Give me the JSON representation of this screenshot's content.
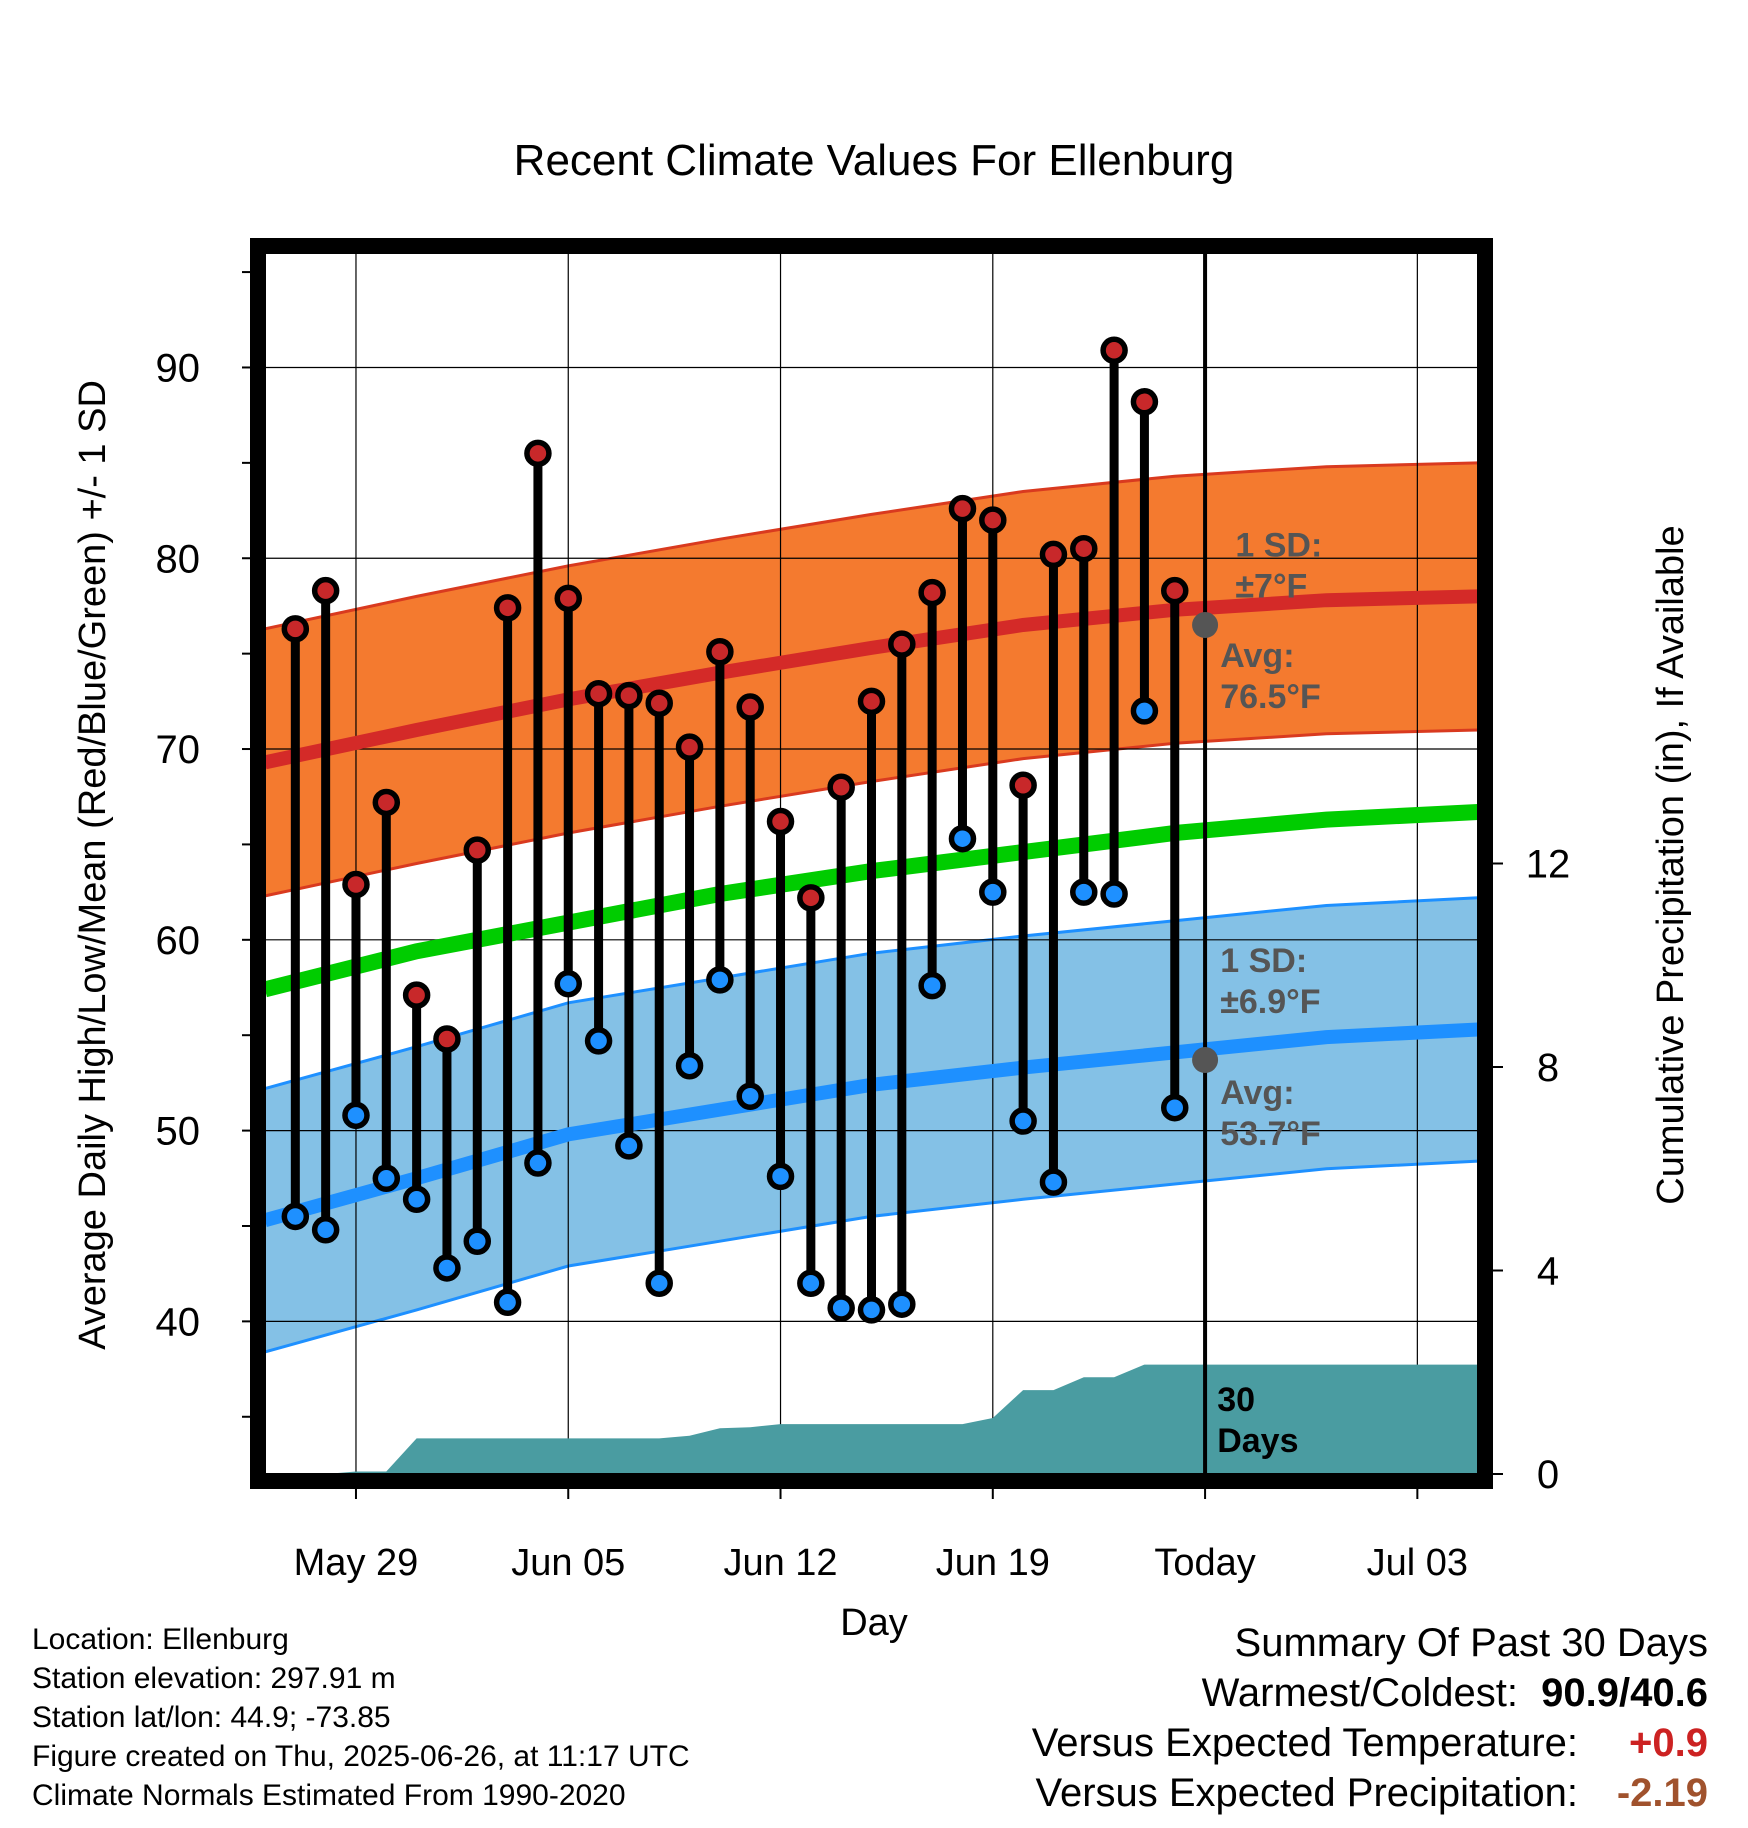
{
  "chart_data": {
    "type": "line",
    "title": "Recent Climate Values For Ellenburg",
    "xlabel": "Day",
    "ylabel": "Average Daily High/Low/Mean (Red/Blue/Green) +/- 1 SD",
    "y2label": "Cumulative Precipitation (in), If Available",
    "ylim": [
      32,
      96
    ],
    "y2lim": [
      0,
      24
    ],
    "y_ticks": [
      40,
      50,
      60,
      70,
      80,
      90
    ],
    "y2_ticks": [
      0,
      4,
      8,
      12
    ],
    "x_range": [
      0,
      40
    ],
    "x_ticks": [
      {
        "x": 3,
        "label": "May 29"
      },
      {
        "x": 10,
        "label": "Jun 05"
      },
      {
        "x": 17,
        "label": "Jun 12"
      },
      {
        "x": 24,
        "label": "Jun 19"
      },
      {
        "x": 31,
        "label": "Today"
      },
      {
        "x": 38,
        "label": "Jul 03"
      }
    ],
    "today_x": 31,
    "grid": true,
    "days_x": [
      1,
      2,
      3,
      4,
      5,
      6,
      7,
      8,
      9,
      10,
      11,
      12,
      13,
      14,
      15,
      16,
      17,
      18,
      19,
      20,
      21,
      22,
      23,
      24,
      25,
      26,
      27,
      28,
      29,
      30
    ],
    "daily_high": [
      76.3,
      78.3,
      62.9,
      67.2,
      57.1,
      54.8,
      64.7,
      77.4,
      85.5,
      77.9,
      72.9,
      72.8,
      72.4,
      70.1,
      75.1,
      72.2,
      66.2,
      62.2,
      68.0,
      72.5,
      75.5,
      78.2,
      82.6,
      82.0,
      68.1,
      80.2,
      80.5,
      90.9,
      88.2,
      78.3
    ],
    "daily_low": [
      45.5,
      44.8,
      50.8,
      47.5,
      46.4,
      42.8,
      44.2,
      41.0,
      48.3,
      57.7,
      54.7,
      49.2,
      42.0,
      53.4,
      57.9,
      51.8,
      47.6,
      42.0,
      40.7,
      40.6,
      40.9,
      57.6,
      65.3,
      62.5,
      50.5,
      47.3,
      62.5,
      62.4,
      72.0,
      51.2
    ],
    "normals": {
      "x": [
        0,
        5,
        10,
        15,
        20,
        25,
        30,
        35,
        40
      ],
      "high_mean": [
        69.3,
        71.0,
        72.6,
        74.0,
        75.3,
        76.5,
        77.3,
        77.8,
        78.0
      ],
      "high_sd": 7,
      "low_mean": [
        45.3,
        47.5,
        49.8,
        51.1,
        52.4,
        53.3,
        54.1,
        54.9,
        55.3
      ],
      "low_sd": 6.9,
      "mean": [
        57.4,
        59.4,
        60.9,
        62.4,
        63.6,
        64.6,
        65.6,
        66.3,
        66.7
      ]
    },
    "precip_cumulative": {
      "x": [
        0,
        1,
        2,
        3,
        4,
        5,
        6,
        7,
        8,
        9,
        10,
        11,
        12,
        13,
        14,
        15,
        16,
        17,
        18,
        19,
        20,
        21,
        22,
        23,
        24,
        25,
        26,
        27,
        28,
        29,
        30,
        31,
        40
      ],
      "values": [
        0,
        0,
        0,
        0.05,
        0.05,
        0.7,
        0.7,
        0.7,
        0.7,
        0.7,
        0.7,
        0.7,
        0.7,
        0.7,
        0.75,
        0.9,
        0.92,
        0.98,
        0.98,
        0.98,
        0.98,
        0.98,
        0.98,
        0.98,
        1.1,
        1.65,
        1.65,
        1.9,
        1.9,
        2.15,
        2.15,
        2.15,
        2.15
      ]
    },
    "annotations": [
      {
        "label": "1 SD:",
        "value": "±7°F",
        "series": "high"
      },
      {
        "label": "Avg:",
        "value": "76.5°F",
        "series": "high"
      },
      {
        "label": "1 SD:",
        "value": "±6.9°F",
        "series": "low"
      },
      {
        "label": "Avg:",
        "value": "53.7°F",
        "series": "low"
      },
      {
        "label": "30 Days",
        "value": "",
        "series": "precip"
      }
    ],
    "colors": {
      "high_band": "#f47a2f",
      "high_band_edge": "#d93a1f",
      "high_line": "#d42a28",
      "mean_line": "#00cc00",
      "low_band": "#84c1e6",
      "low_band_edge": "#1e90ff",
      "low_line": "#1e90ff",
      "precip": "#4a9ca1",
      "high_dot": "#c8282a",
      "low_dot": "#1e90ff",
      "annotation": "#555555"
    }
  },
  "footer": {
    "location": "Location: Ellenburg",
    "elevation": "Station elevation: 297.91 m",
    "latlon": "Station lat/lon: 44.9; -73.85",
    "created": "Figure created on Thu, 2025-06-26, at 11:17 UTC",
    "normals": "Climate Normals Estimated From 1990-2020"
  },
  "summary": {
    "title": "Summary Of Past 30 Days",
    "warm_cold_label": "Warmest/Coldest:",
    "warm_cold_value": "90.9/40.6",
    "temp_label": "Versus Expected Temperature:",
    "temp_value": "+0.9",
    "temp_color": "#cc2222",
    "precip_label": "Versus Expected Precipitation:",
    "precip_value": "-2.19",
    "precip_color": "#a0522d"
  }
}
